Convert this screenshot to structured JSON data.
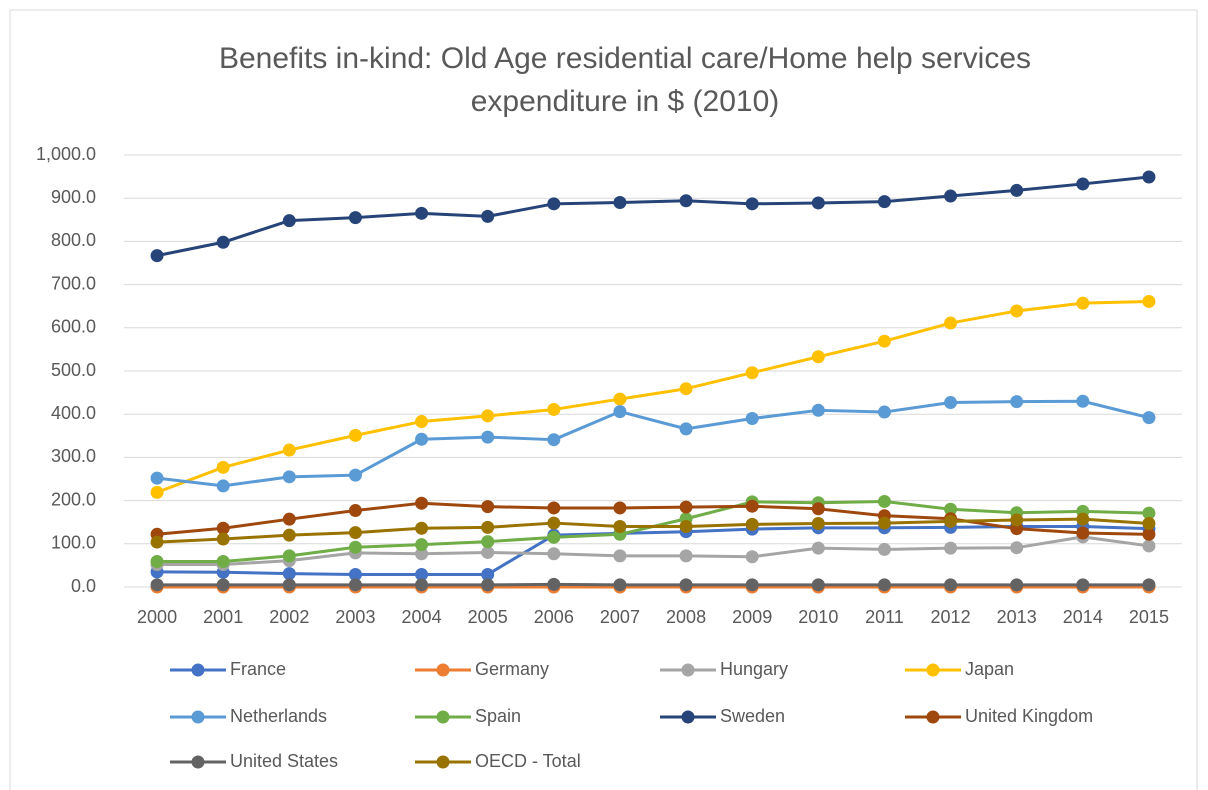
{
  "chart_data": {
    "type": "line",
    "title": "Benefits in-kind: Old Age residential care/Home help services",
    "subtitle": "expenditure in $ (2010)",
    "categories": [
      "2000",
      "2001",
      "2002",
      "2003",
      "2004",
      "2005",
      "2006",
      "2007",
      "2008",
      "2009",
      "2010",
      "2011",
      "2012",
      "2013",
      "2014",
      "2015"
    ],
    "ylim": [
      0,
      1000
    ],
    "yticks": [
      {
        "value": 0,
        "label": "0.0"
      },
      {
        "value": 100,
        "label": "100.0"
      },
      {
        "value": 200,
        "label": "200.0"
      },
      {
        "value": 300,
        "label": "300.0"
      },
      {
        "value": 400,
        "label": "400.0"
      },
      {
        "value": 500,
        "label": "500.0"
      },
      {
        "value": 600,
        "label": "600.0"
      },
      {
        "value": 700,
        "label": "700.0"
      },
      {
        "value": 800,
        "label": "800.0"
      },
      {
        "value": 900,
        "label": "900.0"
      },
      {
        "value": 1000,
        "label": "1,000.0"
      }
    ],
    "grid": true,
    "legend": "bottom",
    "series": [
      {
        "name": "France",
        "color": "#4472c4",
        "values": [
          35,
          34,
          31,
          29,
          29,
          29,
          120,
          124,
          128,
          134,
          137,
          137,
          138,
          140,
          140,
          135
        ]
      },
      {
        "name": "Germany",
        "color": "#ed7d31",
        "values": [
          0,
          0,
          0,
          0,
          0,
          0,
          0,
          0,
          0,
          0,
          0,
          0,
          0,
          0,
          0,
          0
        ]
      },
      {
        "name": "Hungary",
        "color": "#a5a5a5",
        "values": [
          52,
          52,
          61,
          79,
          77,
          80,
          77,
          72,
          72,
          70,
          90,
          87,
          90,
          91,
          116,
          95
        ]
      },
      {
        "name": "Japan",
        "color": "#ffc000",
        "values": [
          219,
          277,
          317,
          351,
          383,
          396,
          411,
          435,
          459,
          496,
          533,
          569,
          611,
          639,
          657,
          661
        ]
      },
      {
        "name": "Netherlands",
        "color": "#5b9bd5",
        "values": [
          252,
          234,
          255,
          259,
          342,
          347,
          341,
          406,
          366,
          390,
          409,
          405,
          427,
          429,
          430,
          392
        ]
      },
      {
        "name": "Spain",
        "color": "#70ad47",
        "values": [
          59,
          59,
          72,
          92,
          98,
          105,
          115,
          122,
          158,
          197,
          195,
          198,
          180,
          172,
          175,
          171
        ]
      },
      {
        "name": "Sweden",
        "color": "#264478",
        "values": [
          767,
          798,
          848,
          855,
          865,
          858,
          887,
          890,
          894,
          887,
          889,
          892,
          905,
          918,
          933,
          949
        ]
      },
      {
        "name": "United Kingdom",
        "color": "#9e480e",
        "values": [
          122,
          136,
          157,
          177,
          194,
          186,
          183,
          183,
          185,
          187,
          181,
          165,
          158,
          135,
          125,
          122
        ]
      },
      {
        "name": "United States",
        "color": "#636363",
        "values": [
          5,
          5,
          5,
          5,
          5,
          5,
          6,
          5,
          5,
          5,
          5,
          5,
          5,
          5,
          5,
          5
        ]
      },
      {
        "name": "OECD - Total",
        "color": "#997300",
        "values": [
          104,
          111,
          120,
          126,
          136,
          138,
          148,
          140,
          140,
          145,
          147,
          148,
          152,
          155,
          157,
          147
        ]
      }
    ]
  }
}
